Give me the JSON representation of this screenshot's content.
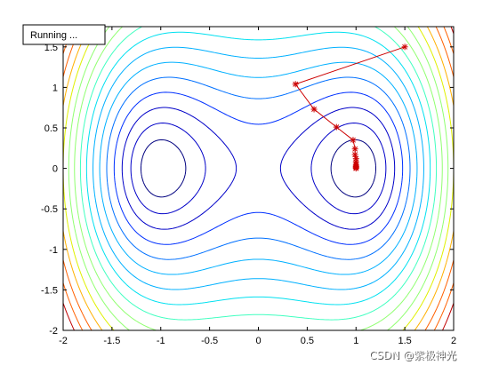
{
  "status": {
    "text": "Running ..."
  },
  "watermark": {
    "text": "CSDN @紫极神光"
  },
  "colors": {
    "path": "#cc0000",
    "axes": "#000000",
    "background": "#ffffff",
    "contour_palette": [
      "#00007f",
      "#0000c8",
      "#0030ff",
      "#0070ff",
      "#00b0ff",
      "#00e0f0",
      "#40ffc0",
      "#90ff70",
      "#e0f000",
      "#ffb000",
      "#ff6000",
      "#c00000"
    ]
  },
  "chart_data": {
    "type": "contour",
    "function": "f(x,y) = x^4 - 2x^2 + y^2/... (double-well; minima near (-1,0) and (1,0))",
    "xlim": [
      -2,
      2
    ],
    "ylim": [
      -2,
      1.75
    ],
    "xticks": [
      -2,
      -1.5,
      -1,
      -0.5,
      0,
      0.5,
      1,
      1.5,
      2
    ],
    "yticks": [
      -2,
      -1.5,
      -1,
      -0.5,
      0,
      0.5,
      1,
      1.5
    ],
    "xtick_labels": [
      "-2",
      "-1.5",
      "-1",
      "-0.5",
      "0",
      "0.5",
      "1",
      "1.5",
      "2"
    ],
    "ytick_labels": [
      "-2",
      "-1.5",
      "-1",
      "-0.5",
      "0",
      "0.5",
      "1",
      "1.5"
    ],
    "contour_levels": [
      -0.8,
      -0.5,
      -0.1,
      0.4,
      1,
      1.7,
      2.5,
      3.4,
      4.4,
      5.5,
      6.7,
      8,
      9.4,
      11,
      12.7,
      14.5
    ],
    "series": [
      {
        "marker": "*",
        "points": [
          [
            1.5,
            1.5
          ],
          [
            0.38,
            1.04
          ],
          [
            0.57,
            0.73
          ],
          [
            0.8,
            0.51
          ],
          [
            0.97,
            0.35
          ],
          [
            0.99,
            0.24
          ],
          [
            0.99,
            0.17
          ],
          [
            1.0,
            0.12
          ],
          [
            1.0,
            0.08
          ],
          [
            1.0,
            0.05
          ],
          [
            1.0,
            0.03
          ],
          [
            1.0,
            0.02
          ],
          [
            1.0,
            0.01
          ],
          [
            1.0,
            0.0
          ]
        ]
      }
    ]
  }
}
